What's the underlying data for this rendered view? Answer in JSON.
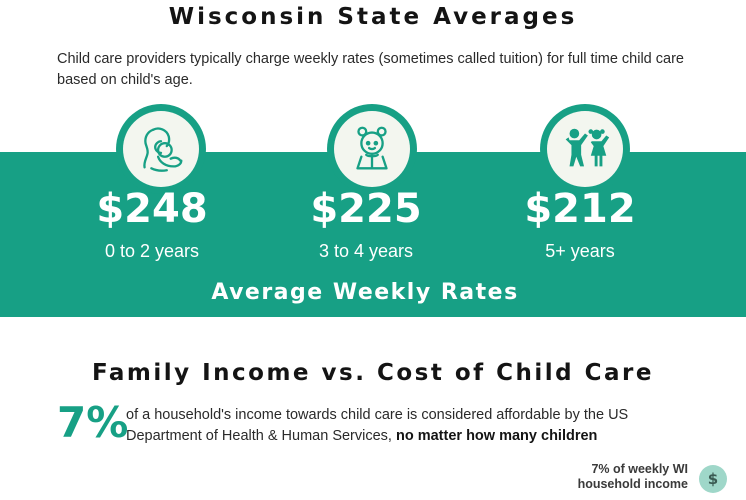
{
  "header": {
    "title": "Wisconsin State Averages",
    "intro": "Child care providers typically charge weekly rates (sometimes called tuition) for full time child care based on child's age."
  },
  "rates": [
    {
      "amount": "$248",
      "age": "0 to 2 years",
      "icon": "mother-baby-icon"
    },
    {
      "amount": "$225",
      "age": "3 to 4 years",
      "icon": "toddler-icon"
    },
    {
      "amount": "$212",
      "age": "5+ years",
      "icon": "children-icon"
    }
  ],
  "band_label": "Average Weekly Rates",
  "income": {
    "title": "Family Income vs. Cost of Child Care",
    "percent": "7%",
    "description": "of a household's income towards child care is considered affordable by the US Department of Health & Human Services,",
    "description_bold": "no matter how many children"
  },
  "legend": {
    "line1": "7% of weekly WI",
    "line2": "household income",
    "badge_symbol": "$"
  },
  "colors": {
    "accent": "#17a085",
    "icon_bg": "#f3f6ef",
    "badge": "#9fd7c9"
  }
}
